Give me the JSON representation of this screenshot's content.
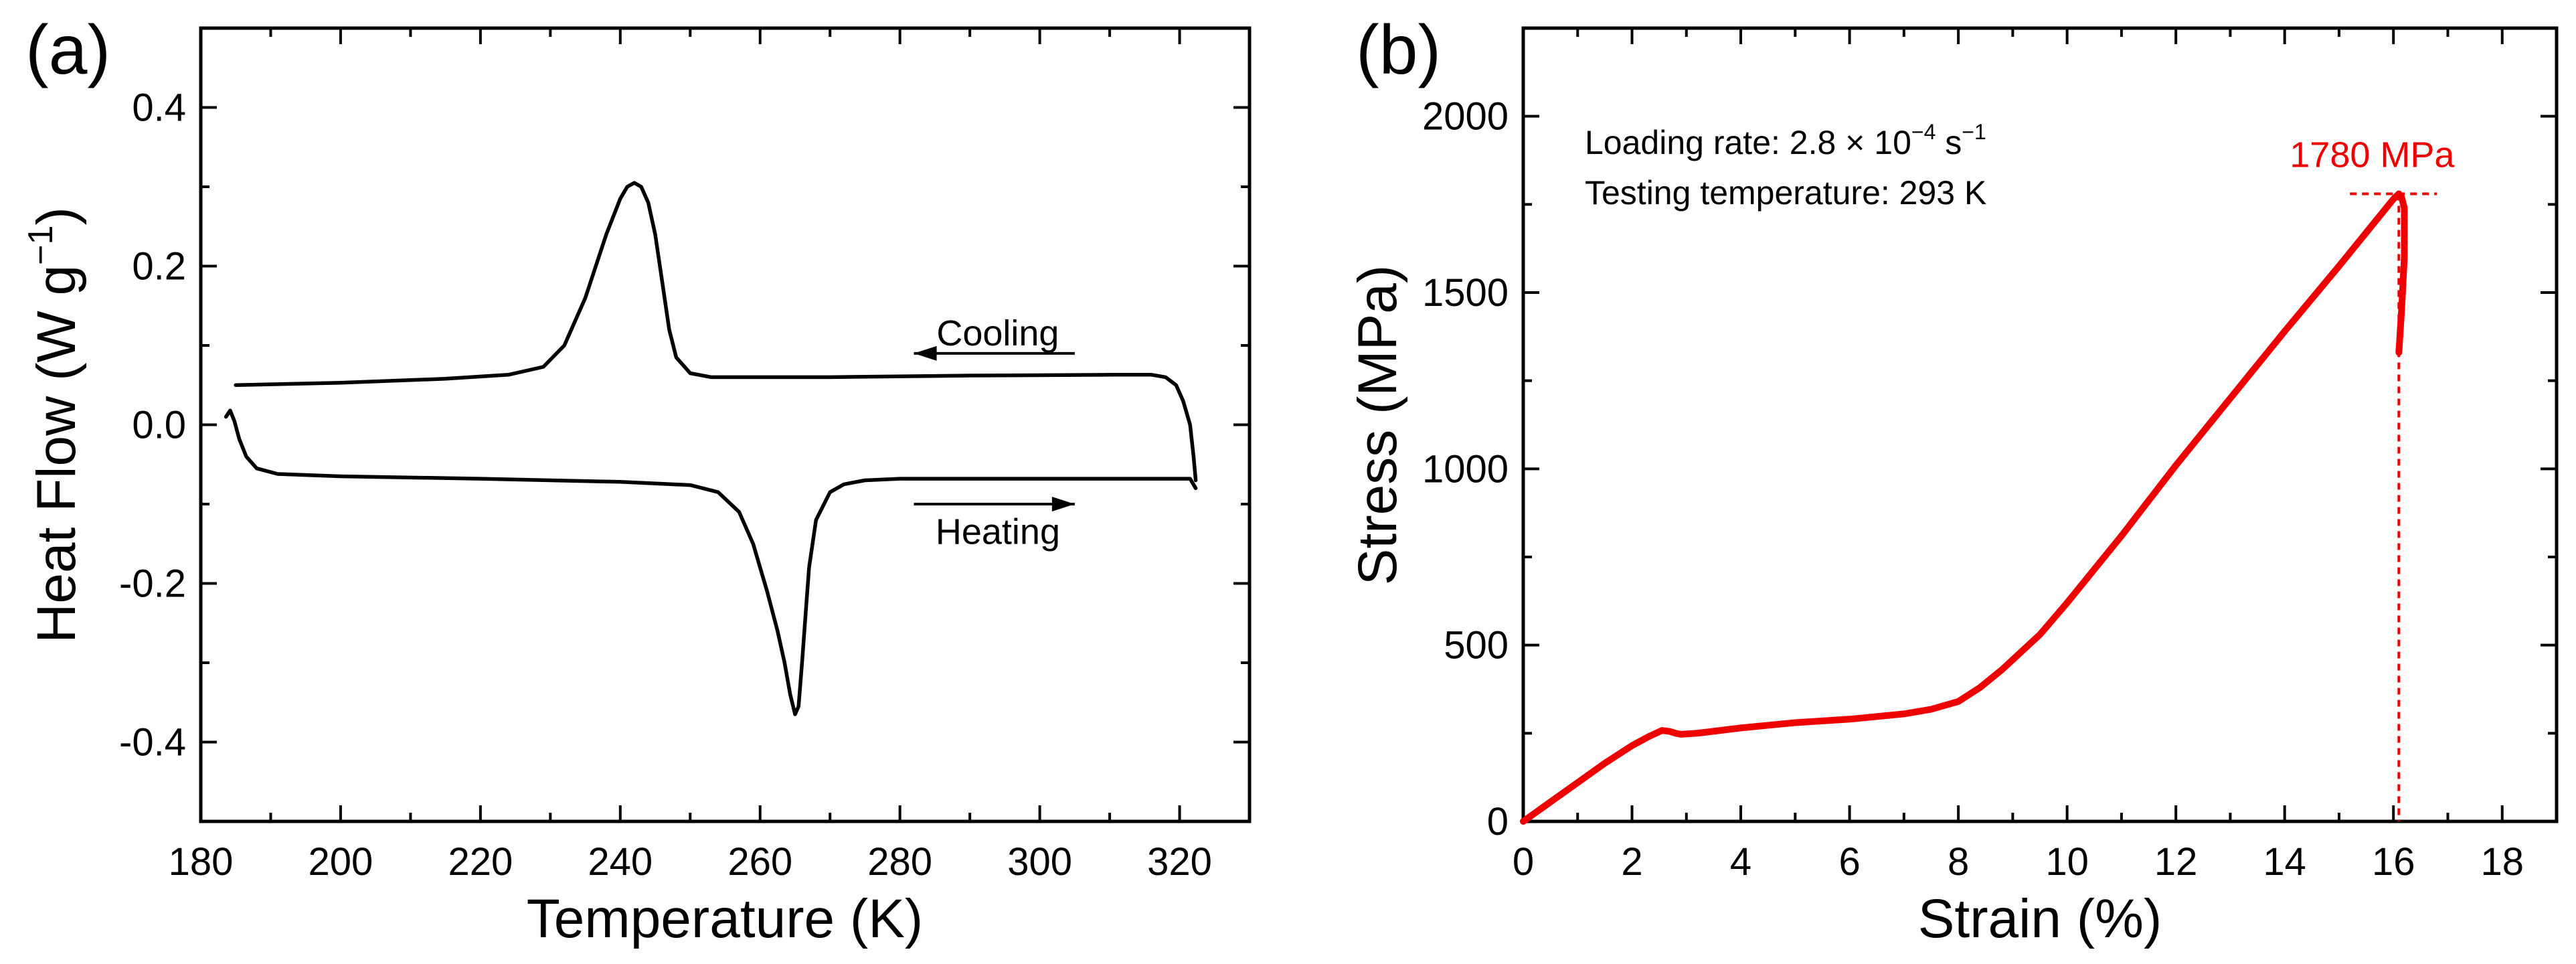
{
  "colors": {
    "axis": "#000000",
    "dsc_curve": "#000000",
    "stress_curve": "#ee0000",
    "peak_marker": "#ee0000"
  },
  "chart_data": [
    {
      "panel_label": "(a)",
      "type": "line",
      "xlabel": "Temperature (K)",
      "ylabel_main": "Heat Flow (W g",
      "ylabel_sup": "−1",
      "ylabel_close": ")",
      "xlim": [
        180,
        330
      ],
      "ylim": [
        -0.5,
        0.5
      ],
      "xticks": [
        180,
        200,
        220,
        240,
        260,
        280,
        300,
        320
      ],
      "xtick_labels": [
        "180",
        "200",
        "220",
        "240",
        "260",
        "280",
        "300",
        "320"
      ],
      "yticks": [
        -0.4,
        -0.2,
        0.0,
        0.2,
        0.4
      ],
      "ytick_labels": [
        "-0.4",
        "-0.2",
        "0.0",
        "0.2",
        "0.4"
      ],
      "annotations": [
        {
          "text": "Cooling",
          "arrow_direction": "left",
          "x_from": 305,
          "x_to": 282,
          "y": 0.09,
          "text_x": 294,
          "text_y": 0.115
        },
        {
          "text": "Heating",
          "arrow_direction": "right",
          "x_from": 282,
          "x_to": 305,
          "y": -0.1,
          "text_x": 294,
          "text_y": -0.135
        }
      ],
      "series": [
        {
          "name": "Cooling",
          "x": [
            185,
            200,
            215,
            224,
            229,
            232,
            235,
            238,
            240,
            241,
            242,
            243,
            244,
            245,
            246,
            247,
            248,
            250,
            253,
            258,
            270,
            290,
            310,
            316,
            318,
            319.5,
            320.5,
            321.5,
            322,
            322.3
          ],
          "y": [
            0.05,
            0.053,
            0.058,
            0.063,
            0.073,
            0.1,
            0.16,
            0.24,
            0.285,
            0.3,
            0.305,
            0.3,
            0.28,
            0.24,
            0.18,
            0.12,
            0.085,
            0.065,
            0.06,
            0.06,
            0.06,
            0.062,
            0.063,
            0.063,
            0.06,
            0.05,
            0.03,
            0.0,
            -0.04,
            -0.07
          ]
        },
        {
          "name": "Heating",
          "x": [
            183.6,
            184.2,
            184.8,
            185.5,
            186.5,
            188,
            191,
            200,
            220,
            240,
            250,
            254,
            257,
            259,
            261,
            262.5,
            263.5,
            264.3,
            265,
            265.5,
            266,
            266.5,
            267,
            268,
            270,
            272,
            275,
            280,
            290,
            300,
            310,
            320,
            321.5,
            322.3
          ],
          "y": [
            0.01,
            0.018,
            0.005,
            -0.018,
            -0.04,
            -0.055,
            -0.062,
            -0.065,
            -0.068,
            -0.072,
            -0.076,
            -0.085,
            -0.11,
            -0.15,
            -0.21,
            -0.26,
            -0.3,
            -0.34,
            -0.365,
            -0.355,
            -0.3,
            -0.24,
            -0.18,
            -0.12,
            -0.085,
            -0.075,
            -0.07,
            -0.068,
            -0.068,
            -0.068,
            -0.068,
            -0.068,
            -0.068,
            -0.08
          ]
        }
      ]
    },
    {
      "panel_label": "(b)",
      "type": "line",
      "xlabel": "Strain (%)",
      "ylabel": "Stress (MPa)",
      "xlim": [
        0,
        19
      ],
      "ylim": [
        0,
        2250
      ],
      "xticks": [
        0,
        2,
        4,
        6,
        8,
        10,
        12,
        14,
        16,
        18
      ],
      "xtick_labels": [
        "0",
        "2",
        "4",
        "6",
        "8",
        "10",
        "12",
        "14",
        "16",
        "18"
      ],
      "yticks": [
        0,
        500,
        1000,
        1500,
        2000
      ],
      "ytick_labels": [
        "0",
        "500",
        "1000",
        "1500",
        "2000"
      ],
      "legend_lines": [
        {
          "prefix": "Loading rate: 2.8 × 10",
          "sup": "−4",
          "mid": " s",
          "sup2": "−1"
        },
        {
          "text": "Testing temperature: 293 K"
        }
      ],
      "peak": {
        "strain": 16.1,
        "stress": 1780,
        "label": "1780 MPa"
      },
      "series": [
        {
          "name": "Stress-strain",
          "x": [
            0,
            0.5,
            1,
            1.5,
            2,
            2.3,
            2.55,
            2.7,
            2.8,
            2.9,
            3.2,
            4,
            5,
            6,
            7,
            7.5,
            8,
            8.4,
            8.8,
            9.5,
            10,
            11,
            12,
            13,
            14,
            15,
            16.0,
            16.1,
            16.15,
            16.2,
            16.2,
            16.15,
            16.1
          ],
          "y": [
            0,
            55,
            110,
            165,
            215,
            240,
            258,
            255,
            250,
            247,
            250,
            265,
            280,
            290,
            305,
            318,
            340,
            380,
            430,
            530,
            620,
            810,
            1010,
            1200,
            1390,
            1575,
            1765,
            1780,
            1770,
            1740,
            1600,
            1450,
            1330
          ]
        }
      ]
    }
  ]
}
